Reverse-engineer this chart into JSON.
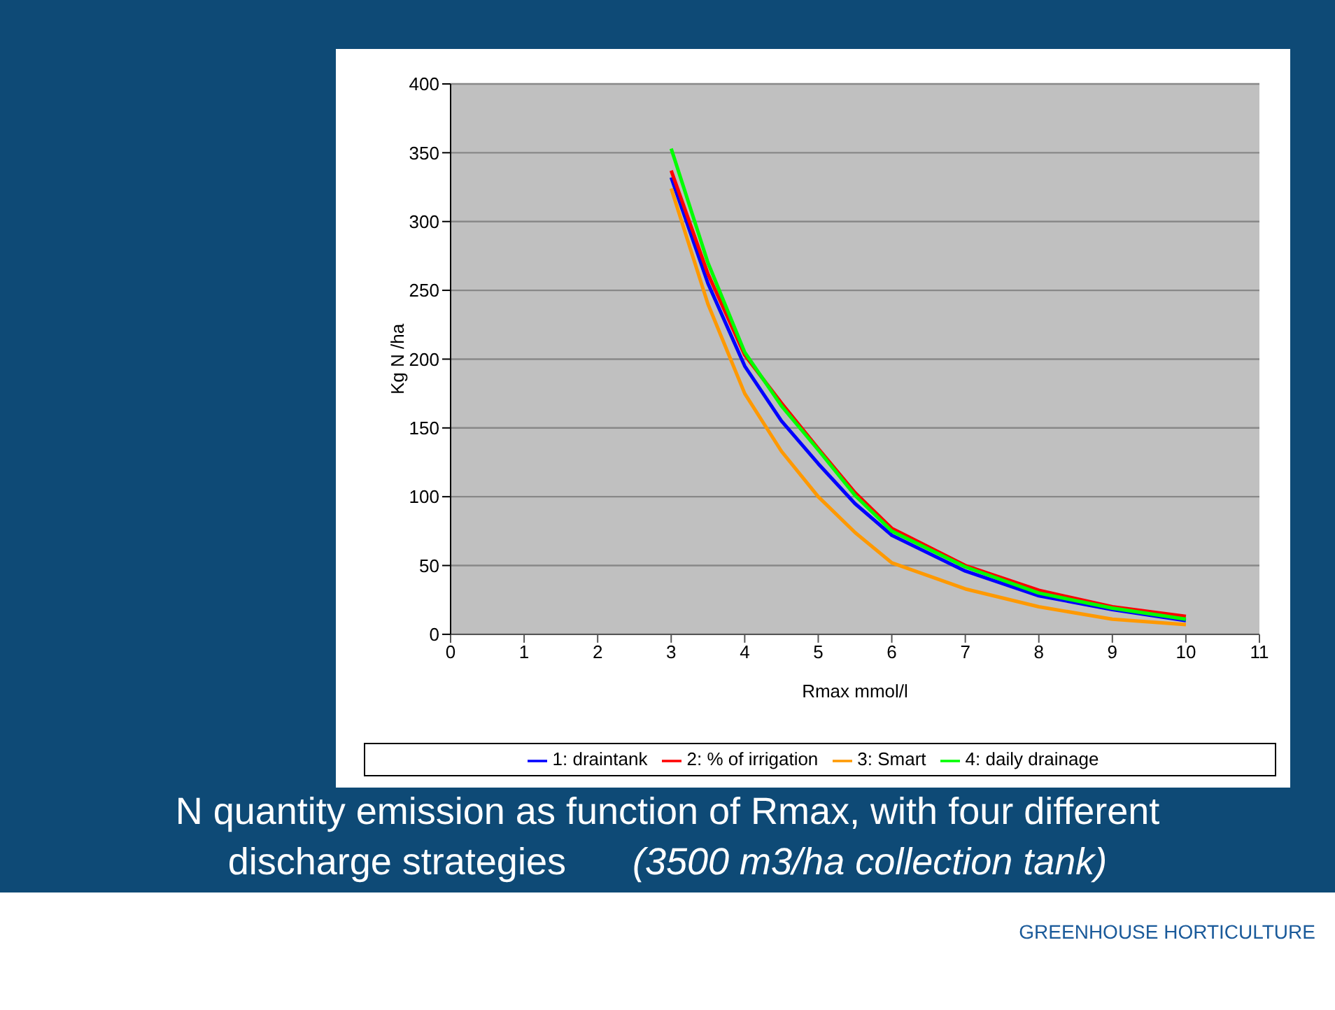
{
  "chart_data": {
    "type": "line",
    "title": "N quantity emission as function of Rmax, with four different discharge strategies",
    "subtitle": "(3500 m3/ha collection tank)",
    "xlabel": "Rmax mmol/l",
    "ylabel": "Kg N /ha",
    "annotations": [
      "GREENHOUSE HORTICULTURE"
    ],
    "x": [
      3,
      3.5,
      4,
      4.5,
      5,
      5.5,
      6,
      7,
      8,
      9,
      10
    ],
    "series": [
      {
        "name": "1: draintank",
        "color": "#0000ff",
        "values": [
          332,
          255,
          195,
          155,
          124,
          95,
          72,
          46,
          28,
          18,
          10
        ]
      },
      {
        "name": "2: % of irrigation",
        "color": "#ff0000",
        "values": [
          337,
          262,
          203,
          168,
          135,
          103,
          77,
          50,
          32,
          20,
          13
        ]
      },
      {
        "name": "3: Smart",
        "color": "#ff9900",
        "values": [
          324,
          240,
          175,
          133,
          100,
          74,
          52,
          33,
          20,
          11,
          7
        ]
      },
      {
        "name": "4: daily drainage",
        "color": "#00ff00",
        "values": [
          353,
          270,
          205,
          166,
          134,
          101,
          75,
          49,
          30,
          19,
          11
        ]
      }
    ],
    "xlim": [
      0,
      11
    ],
    "xticks": [
      0,
      1,
      2,
      3,
      4,
      5,
      6,
      7,
      8,
      9,
      10,
      11
    ],
    "ylim": [
      0,
      400
    ],
    "yticks": [
      0,
      50,
      100,
      150,
      200,
      250,
      300,
      350,
      400
    ],
    "grid": "y",
    "legend": "bottom",
    "marker": "none",
    "line_style": "solid"
  }
}
